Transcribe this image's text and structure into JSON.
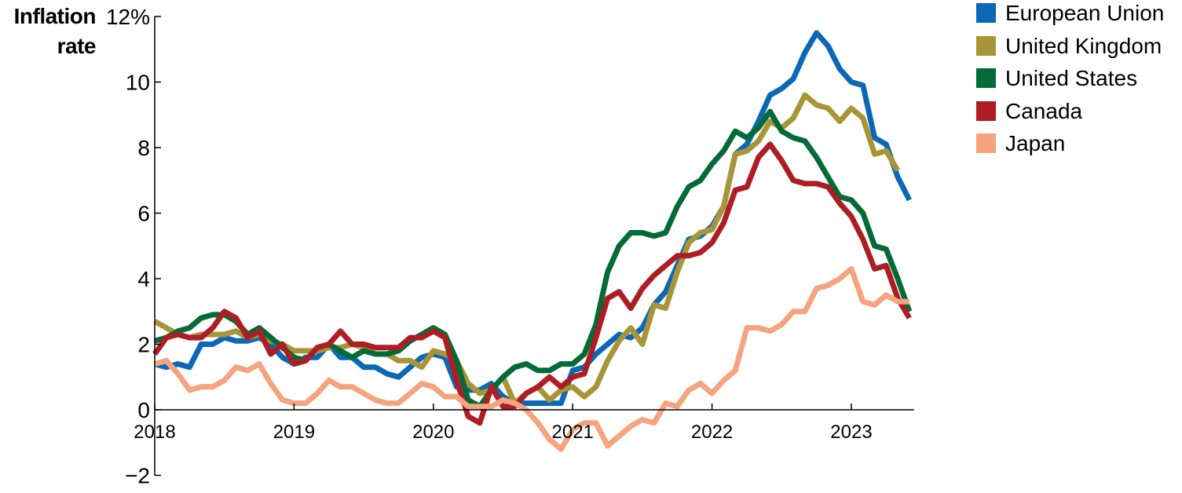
{
  "chart_data": {
    "type": "line",
    "title": "",
    "ylabel": "Inflation rate",
    "xlabel": "",
    "y_unit": "%",
    "ylim": [
      -2,
      12
    ],
    "yticks": [
      -2,
      0,
      2,
      4,
      6,
      8,
      10,
      12
    ],
    "ytick_labels": [
      "−2",
      "0",
      "2",
      "4",
      "6",
      "8",
      "10",
      "12%"
    ],
    "x_start_year": 2018,
    "x_end_year": 2023.45,
    "xticks": [
      "2018",
      "2019",
      "2020",
      "2021",
      "2022",
      "2023"
    ],
    "grid": false,
    "legend_position": "top-right",
    "series": [
      {
        "name": "European Union",
        "color": "#0a68b6",
        "values": [
          1.4,
          1.3,
          1.4,
          1.3,
          2.0,
          2.0,
          2.2,
          2.1,
          2.1,
          2.2,
          2.0,
          1.6,
          1.4,
          1.6,
          1.6,
          2.0,
          1.6,
          1.6,
          1.3,
          1.3,
          1.1,
          1.0,
          1.3,
          1.6,
          1.7,
          1.6,
          0.7,
          0.6,
          0.6,
          0.8,
          0.4,
          0.2,
          0.2,
          0.2,
          0.2,
          0.2,
          1.2,
          1.3,
          1.7,
          2.0,
          2.3,
          2.2,
          2.5,
          3.2,
          3.6,
          4.4,
          5.2,
          5.3,
          5.6,
          6.2,
          7.8,
          8.1,
          8.8,
          9.6,
          9.8,
          10.1,
          10.9,
          11.5,
          11.1,
          10.4,
          10.0,
          9.9,
          8.3,
          8.1,
          7.1,
          6.4
        ]
      },
      {
        "name": "United Kingdom",
        "color": "#a89537",
        "values": [
          2.7,
          2.5,
          2.3,
          2.2,
          2.3,
          2.3,
          2.3,
          2.4,
          2.2,
          2.3,
          2.1,
          2.0,
          1.8,
          1.8,
          1.8,
          1.9,
          1.9,
          2.0,
          1.9,
          1.7,
          1.7,
          1.5,
          1.5,
          1.3,
          1.8,
          1.7,
          1.5,
          0.8,
          0.5,
          0.6,
          1.0,
          0.2,
          0.5,
          0.7,
          0.3,
          0.6,
          0.7,
          0.4,
          0.7,
          1.5,
          2.1,
          2.5,
          2.0,
          3.2,
          3.1,
          4.2,
          5.1,
          5.4,
          5.5,
          6.2,
          7.8,
          7.9,
          8.2,
          8.8,
          8.6,
          8.9,
          9.6,
          9.3,
          9.2,
          8.8,
          9.2,
          8.9,
          7.8,
          7.9,
          7.3
        ]
      },
      {
        "name": "United States",
        "color": "#036b35",
        "values": [
          2.1,
          2.2,
          2.4,
          2.5,
          2.8,
          2.9,
          2.9,
          2.7,
          2.3,
          2.5,
          2.2,
          1.9,
          1.6,
          1.5,
          1.9,
          2.0,
          1.8,
          1.6,
          1.8,
          1.7,
          1.7,
          1.8,
          2.1,
          2.3,
          2.5,
          2.3,
          1.5,
          0.3,
          0.1,
          0.6,
          1.0,
          1.3,
          1.4,
          1.2,
          1.2,
          1.4,
          1.4,
          1.7,
          2.6,
          4.2,
          5.0,
          5.4,
          5.4,
          5.3,
          5.4,
          6.2,
          6.8,
          7.0,
          7.5,
          7.9,
          8.5,
          8.3,
          8.6,
          9.1,
          8.5,
          8.3,
          8.2,
          7.7,
          7.1,
          6.5,
          6.4,
          6.0,
          5.0,
          4.9,
          4.0,
          3.0
        ]
      },
      {
        "name": "Canada",
        "color": "#ad1e24",
        "values": [
          1.7,
          2.2,
          2.3,
          2.2,
          2.2,
          2.5,
          3.0,
          2.8,
          2.2,
          2.4,
          1.7,
          2.0,
          1.4,
          1.5,
          1.9,
          2.0,
          2.4,
          2.0,
          2.0,
          1.9,
          1.9,
          1.9,
          2.2,
          2.2,
          2.4,
          2.2,
          0.9,
          -0.2,
          -0.4,
          0.7,
          0.1,
          0.1,
          0.5,
          0.7,
          1.0,
          0.7,
          1.0,
          1.1,
          2.2,
          3.4,
          3.6,
          3.1,
          3.7,
          4.1,
          4.4,
          4.7,
          4.7,
          4.8,
          5.1,
          5.7,
          6.7,
          6.8,
          7.7,
          8.1,
          7.6,
          7.0,
          6.9,
          6.9,
          6.8,
          6.3,
          5.9,
          5.2,
          4.3,
          4.4,
          3.4,
          2.8
        ]
      },
      {
        "name": "Japan",
        "color": "#f5a47f",
        "values": [
          1.4,
          1.5,
          1.1,
          0.6,
          0.7,
          0.7,
          0.9,
          1.3,
          1.2,
          1.4,
          0.8,
          0.3,
          0.2,
          0.2,
          0.5,
          0.9,
          0.7,
          0.7,
          0.5,
          0.3,
          0.2,
          0.2,
          0.5,
          0.8,
          0.7,
          0.4,
          0.4,
          0.1,
          0.1,
          0.1,
          0.3,
          0.2,
          0.0,
          -0.4,
          -0.9,
          -1.2,
          -0.6,
          -0.4,
          -0.4,
          -1.1,
          -0.8,
          -0.5,
          -0.3,
          -0.4,
          0.2,
          0.1,
          0.6,
          0.8,
          0.5,
          0.9,
          1.2,
          2.5,
          2.5,
          2.4,
          2.6,
          3.0,
          3.0,
          3.7,
          3.8,
          4.0,
          4.3,
          3.3,
          3.2,
          3.5,
          3.3,
          3.3
        ]
      }
    ]
  }
}
